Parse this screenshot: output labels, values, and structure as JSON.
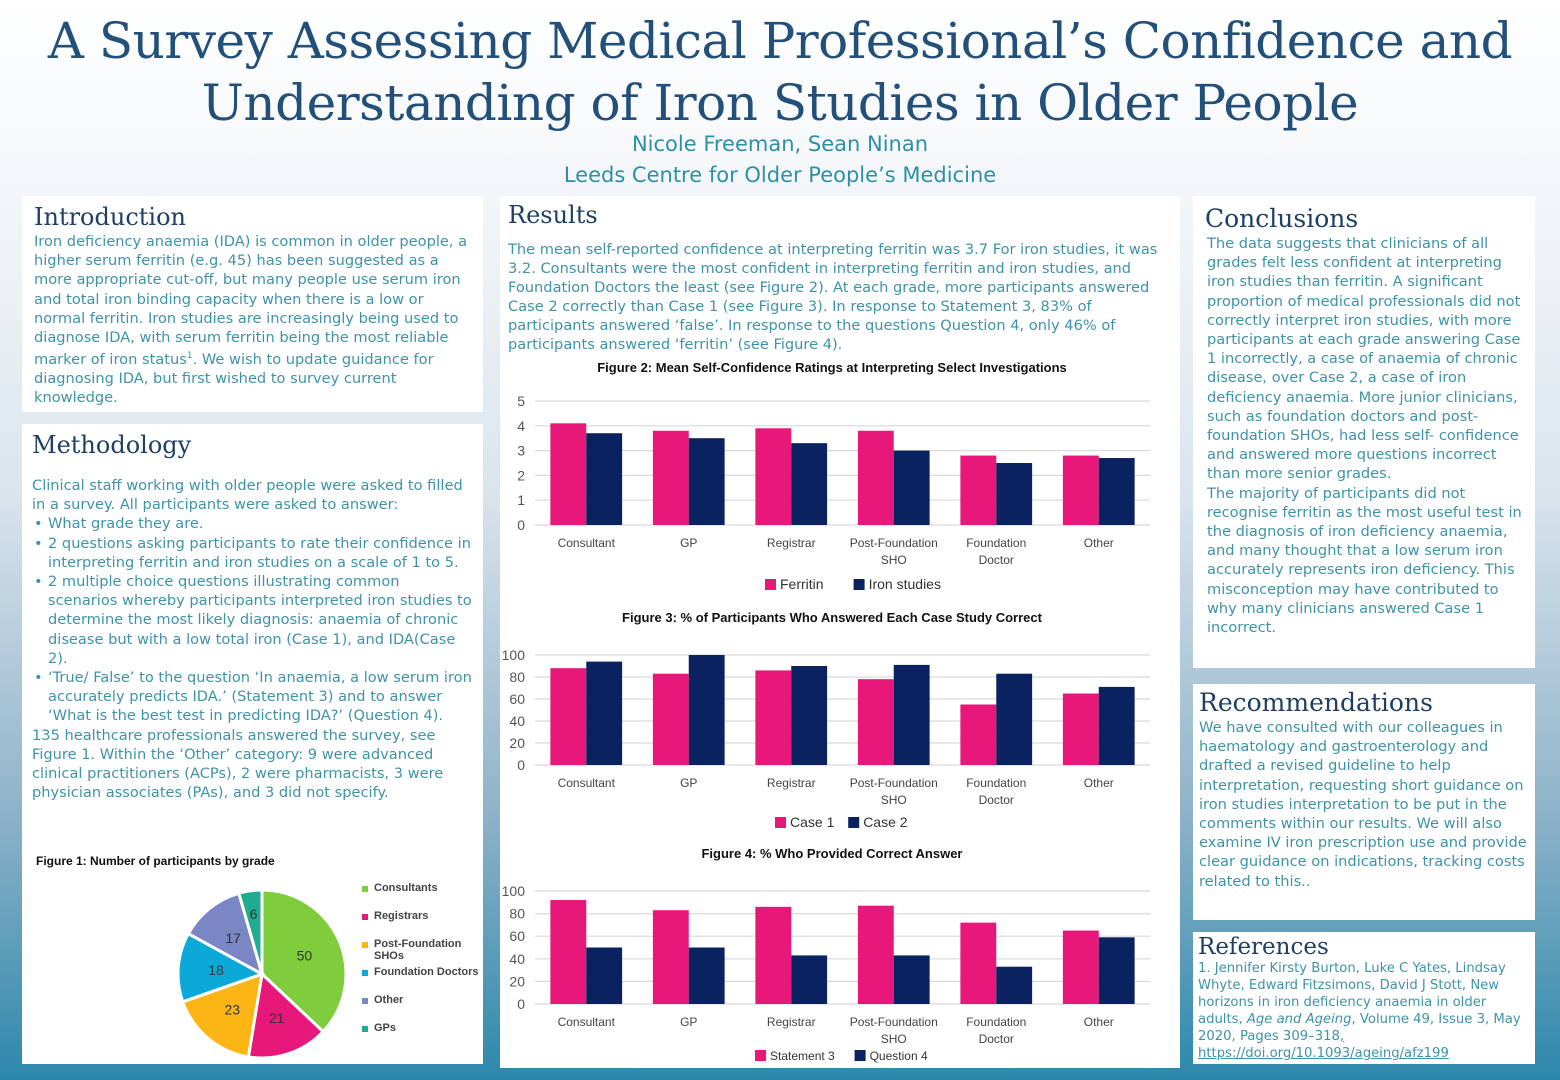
{
  "header": {
    "title_line1": "A Survey Assessing Medical Professional’s Confidence and",
    "title_line2": "Understanding of Iron Studies in Older People",
    "authors": "Nicole Freeman, Sean Ninan",
    "affiliation": "Leeds Centre for Older People’s Medicine"
  },
  "colors": {
    "title": "#23507a",
    "body_text": "#3e93a8",
    "series_pink": "#e8177a",
    "series_navy": "#0b2260"
  },
  "introduction": {
    "heading": "Introduction",
    "text_before_sup": "Iron deficiency anaemia (IDA) is common in older people, a higher serum ferritin (e.g. 45) has been suggested as a more appropriate cut-off, but many people use serum iron and total iron binding capacity when there is a low or normal ferritin. Iron studies are increasingly being used to diagnose IDA, with serum ferritin being the most reliable marker of iron status",
    "sup": "1",
    "text_after_sup": ". We wish to update guidance for diagnosing IDA, but first wished to survey current knowledge."
  },
  "methodology": {
    "heading": "Methodology",
    "intro": "Clinical staff working with older people were asked to filled in a survey. All participants were asked to answer:",
    "bullets": [
      "What grade they are.",
      "2 questions asking participants to rate their confidence in interpreting ferritin and iron studies on a scale of 1 to 5.",
      "2 multiple choice questions illustrating common scenarios whereby participants interpreted iron studies to determine the most likely diagnosis: anaemia of chronic disease but with a low total iron (Case 1), and IDA(Case 2).",
      "‘True/ False’ to the question ‘In anaemia, a low serum iron accurately predicts IDA.’ (Statement 3) and to answer ‘What is the best test in predicting IDA?’ (Question 4)."
    ],
    "summary": "135 healthcare professionals answered the survey, see Figure 1. Within the ‘Other’ category: 9 were advanced clinical practitioners (ACPs), 2 were pharmacists, 3 were physician associates (PAs), and 3 did not specify."
  },
  "results": {
    "heading": "Results",
    "text": "The mean self-reported confidence at interpreting ferritin was 3.7  For iron studies, it was 3.2. Consultants were the most confident in interpreting ferritin and iron studies, and Foundation Doctors the least (see Figure 2). At each grade, more participants answered Case 2 correctly than Case 1 (see Figure 3). In response to Statement 3, 83% of participants answered ‘false’. In response to the questions Question 4, only 46% of participants answered ‘ferritin’ (see Figure 4)."
  },
  "conclusions": {
    "heading": "Conclusions",
    "para1": "The data suggests that clinicians of all grades felt less confident at interpreting iron studies than ferritin. A significant proportion of medical professionals did not correctly interpret iron studies, with more participants at each grade answering Case 1 incorrectly, a case of anaemia of chronic disease, over Case 2, a case of iron deficiency anaemia. More junior clinicians, such as foundation doctors and post-foundation SHOs, had less self- confidence and answered more questions incorrect than more senior grades.",
    "para2": "The majority of participants did not recognise ferritin as the most useful test in the diagnosis of iron deficiency anaemia, and many thought that a low serum iron accurately represents iron deficiency. This misconception may have contributed to why many clinicians answered Case 1 incorrect."
  },
  "recommendations": {
    "heading": "Recommendations",
    "text": "We have consulted with our colleagues in haematology and gastroenterology and drafted a revised guideline to help interpretation, requesting short guidance on iron studies interpretation to be put in the comments within our results. We will also examine IV iron prescription use and provide clear guidance on indications, tracking costs related to this.."
  },
  "references": {
    "heading": "References",
    "ref1_authors": "1. Jennifer Kirsty Burton, Luke C Yates, Lindsay Whyte, Edward Fitzsimons, David J Stott, New horizons in iron deficiency anaemia in older adults, ",
    "ref1_journal": "Age and Ageing",
    "ref1_details": ", Volume 49, Issue 3, May 2020, Pages 309–318",
    "ref1_doi": ", https://doi.org/10.1093/ageing/afz199"
  },
  "chart_data": [
    {
      "id": "figure1",
      "type": "pie",
      "title": "Figure 1:  Number of participants by grade",
      "categories": [
        "Consultants",
        "Registrars",
        "Post-Foundation SHOs",
        "Foundation Doctors",
        "Other",
        "GPs"
      ],
      "values": [
        50,
        21,
        23,
        18,
        17,
        6
      ],
      "colors": [
        "#7fcc3c",
        "#e8177a",
        "#fbb515",
        "#0aa9d8",
        "#7b86c4",
        "#20ab93"
      ],
      "legend": "right",
      "data_labels": true
    },
    {
      "id": "figure2",
      "type": "bar",
      "title": "Figure 2: Mean Self-Confidence Ratings at Interpreting Select Investigations",
      "categories": [
        "Consultant",
        "GP",
        "Registrar",
        "Post-Foundation SHO",
        "Foundation Doctor",
        "Other"
      ],
      "series": [
        {
          "name": "Ferritin",
          "color": "#e8177a",
          "values": [
            4.1,
            3.8,
            3.9,
            3.8,
            2.8,
            2.8
          ]
        },
        {
          "name": "Iron studies",
          "color": "#0b2260",
          "values": [
            3.7,
            3.5,
            3.3,
            3.0,
            2.5,
            2.7
          ]
        }
      ],
      "yticks": [
        0,
        1,
        2,
        3,
        4,
        5
      ],
      "ylim": [
        0,
        5
      ],
      "grid": true,
      "legend": "bottom"
    },
    {
      "id": "figure3",
      "type": "bar",
      "title": "Figure 3: % of Participants Who Answered Each Case Study Correct",
      "categories": [
        "Consultant",
        "GP",
        "Registrar",
        "Post-Foundation SHO",
        "Foundation Doctor",
        "Other"
      ],
      "series": [
        {
          "name": "Case 1",
          "color": "#e8177a",
          "values": [
            88,
            83,
            86,
            78,
            55,
            65
          ]
        },
        {
          "name": "Case 2",
          "color": "#0b2260",
          "values": [
            94,
            100,
            90,
            91,
            83,
            71
          ]
        }
      ],
      "yticks": [
        0,
        20,
        40,
        60,
        80,
        100
      ],
      "ylim": [
        0,
        100
      ],
      "grid": true,
      "legend": "bottom"
    },
    {
      "id": "figure4",
      "type": "bar",
      "title": "Figure 4: % Who Provided Correct Answer",
      "categories": [
        "Consultant",
        "GP",
        "Registrar",
        "Post-Foundation SHO",
        "Foundation Doctor",
        "Other"
      ],
      "series": [
        {
          "name": "Statement 3",
          "color": "#e8177a",
          "values": [
            92,
            83,
            86,
            87,
            72,
            65
          ]
        },
        {
          "name": "Question 4",
          "color": "#0b2260",
          "values": [
            50,
            50,
            43,
            43,
            33,
            59
          ]
        }
      ],
      "yticks": [
        0,
        20,
        40,
        60,
        80,
        100
      ],
      "ylim": [
        0,
        100
      ],
      "grid": true,
      "legend": "bottom"
    }
  ]
}
